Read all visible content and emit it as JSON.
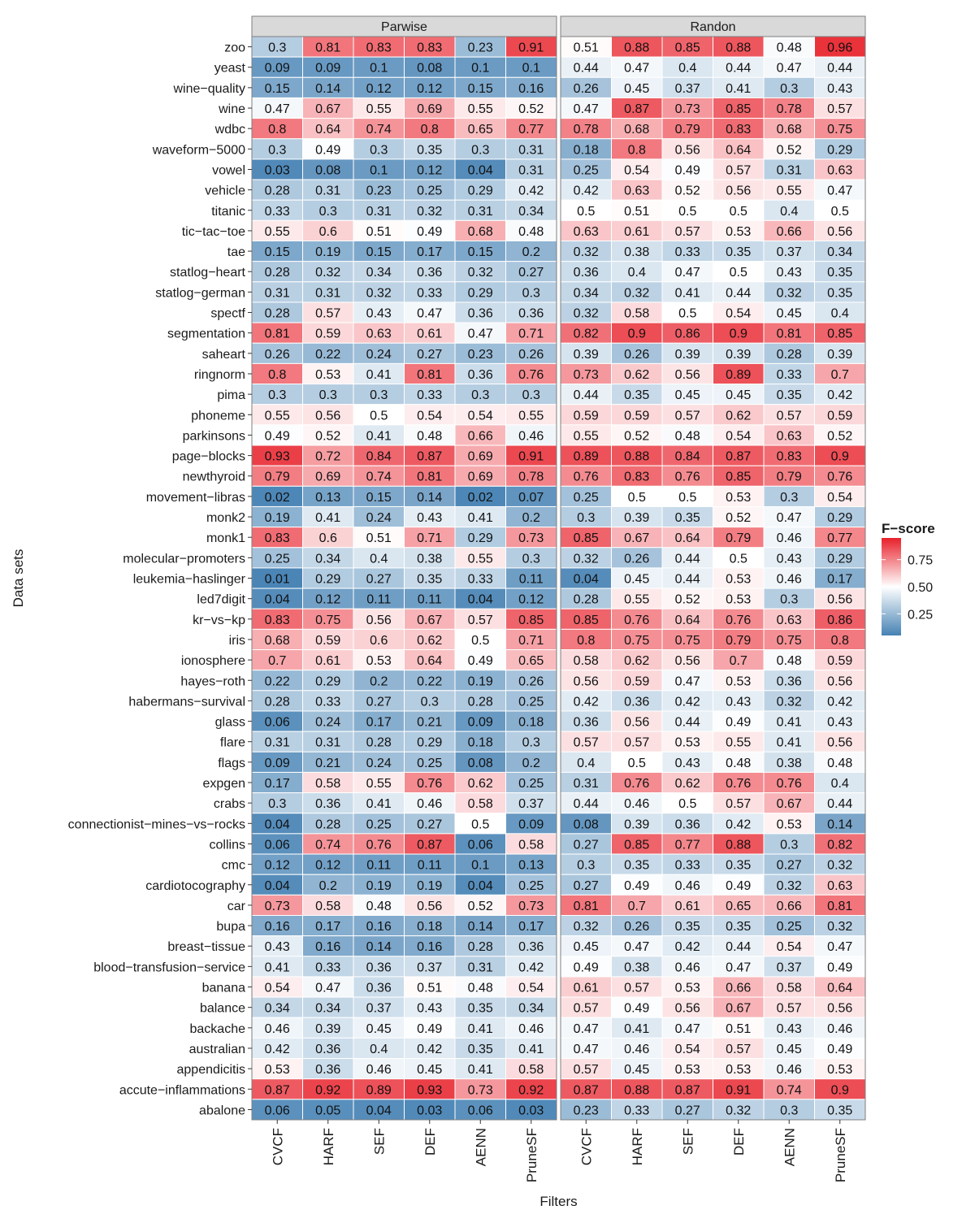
{
  "chart_data": {
    "type": "heatmap",
    "title": "",
    "xlabel": "Filters",
    "ylabel": "Data sets",
    "legend": {
      "title": "F-score",
      "ticks": [
        0.25,
        0.5,
        0.75
      ],
      "tick_labels": [
        "0.25",
        "0.50",
        "0.75"
      ],
      "position": "right",
      "colors": {
        "low": "#4682B4",
        "mid": "#FFFFFF",
        "high": "#E8202A"
      },
      "range": [
        0.0,
        1.0
      ]
    },
    "filters": [
      "CVCF",
      "HARF",
      "SEF",
      "DEF",
      "AENN",
      "PruneSF"
    ],
    "datasets": [
      "zoo",
      "yeast",
      "wine-quality",
      "wine",
      "wdbc",
      "waveform-5000",
      "vowel",
      "vehicle",
      "titanic",
      "tic-tac-toe",
      "tae",
      "statlog-heart",
      "statlog-german",
      "spectf",
      "segmentation",
      "saheart",
      "ringnorm",
      "pima",
      "phoneme",
      "parkinsons",
      "page-blocks",
      "newthyroid",
      "movement-libras",
      "monk2",
      "monk1",
      "molecular-promoters",
      "leukemia-haslinger",
      "led7digit",
      "kr-vs-kp",
      "iris",
      "ionosphere",
      "hayes-roth",
      "habermans-survival",
      "glass",
      "flare",
      "flags",
      "expgen",
      "crabs",
      "connectionist-mines-vs-rocks",
      "collins",
      "cmc",
      "cardiotocography",
      "car",
      "bupa",
      "breast-tissue",
      "blood-transfusion-service",
      "banana",
      "balance",
      "backache",
      "australian",
      "appendicitis",
      "accute-inflammations",
      "abalone"
    ],
    "panels": [
      {
        "name": "Parwise",
        "values": [
          [
            0.3,
            0.81,
            0.83,
            0.83,
            0.23,
            0.91
          ],
          [
            0.09,
            0.09,
            0.1,
            0.08,
            0.1,
            0.1
          ],
          [
            0.15,
            0.14,
            0.12,
            0.12,
            0.15,
            0.16
          ],
          [
            0.47,
            0.67,
            0.55,
            0.69,
            0.55,
            0.52
          ],
          [
            0.8,
            0.64,
            0.74,
            0.8,
            0.65,
            0.77
          ],
          [
            0.3,
            0.49,
            0.3,
            0.35,
            0.3,
            0.31
          ],
          [
            0.03,
            0.08,
            0.1,
            0.12,
            0.04,
            0.31
          ],
          [
            0.28,
            0.31,
            0.23,
            0.25,
            0.29,
            0.42
          ],
          [
            0.33,
            0.3,
            0.31,
            0.32,
            0.31,
            0.34
          ],
          [
            0.55,
            0.6,
            0.51,
            0.49,
            0.68,
            0.48
          ],
          [
            0.15,
            0.19,
            0.15,
            0.17,
            0.15,
            0.2
          ],
          [
            0.28,
            0.32,
            0.34,
            0.36,
            0.32,
            0.27
          ],
          [
            0.31,
            0.31,
            0.32,
            0.33,
            0.29,
            0.3
          ],
          [
            0.28,
            0.57,
            0.43,
            0.47,
            0.36,
            0.36
          ],
          [
            0.81,
            0.59,
            0.63,
            0.61,
            0.47,
            0.71
          ],
          [
            0.26,
            0.22,
            0.24,
            0.27,
            0.23,
            0.26
          ],
          [
            0.8,
            0.53,
            0.41,
            0.81,
            0.36,
            0.76
          ],
          [
            0.3,
            0.3,
            0.3,
            0.33,
            0.3,
            0.3
          ],
          [
            0.55,
            0.56,
            0.5,
            0.54,
            0.54,
            0.55
          ],
          [
            0.49,
            0.52,
            0.41,
            0.48,
            0.66,
            0.46
          ],
          [
            0.93,
            0.72,
            0.84,
            0.87,
            0.69,
            0.91
          ],
          [
            0.79,
            0.69,
            0.74,
            0.81,
            0.69,
            0.78
          ],
          [
            0.02,
            0.13,
            0.15,
            0.14,
            0.02,
            0.07
          ],
          [
            0.19,
            0.41,
            0.24,
            0.43,
            0.41,
            0.2
          ],
          [
            0.83,
            0.6,
            0.51,
            0.71,
            0.29,
            0.73
          ],
          [
            0.25,
            0.34,
            0.4,
            0.38,
            0.55,
            0.3
          ],
          [
            0.01,
            0.29,
            0.27,
            0.35,
            0.33,
            0.11
          ],
          [
            0.04,
            0.12,
            0.11,
            0.11,
            0.04,
            0.12
          ],
          [
            0.83,
            0.75,
            0.56,
            0.67,
            0.57,
            0.85
          ],
          [
            0.68,
            0.59,
            0.6,
            0.62,
            0.5,
            0.71
          ],
          [
            0.7,
            0.61,
            0.53,
            0.64,
            0.49,
            0.65
          ],
          [
            0.22,
            0.29,
            0.2,
            0.22,
            0.19,
            0.26
          ],
          [
            0.28,
            0.33,
            0.27,
            0.3,
            0.28,
            0.25
          ],
          [
            0.06,
            0.24,
            0.17,
            0.21,
            0.09,
            0.18
          ],
          [
            0.31,
            0.31,
            0.28,
            0.29,
            0.18,
            0.3
          ],
          [
            0.09,
            0.21,
            0.24,
            0.25,
            0.08,
            0.2
          ],
          [
            0.17,
            0.58,
            0.55,
            0.76,
            0.62,
            0.25
          ],
          [
            0.3,
            0.36,
            0.41,
            0.46,
            0.58,
            0.37
          ],
          [
            0.04,
            0.28,
            0.25,
            0.27,
            0.5,
            0.09
          ],
          [
            0.06,
            0.74,
            0.76,
            0.87,
            0.06,
            0.58
          ],
          [
            0.12,
            0.12,
            0.11,
            0.11,
            0.1,
            0.13
          ],
          [
            0.04,
            0.2,
            0.19,
            0.19,
            0.04,
            0.25
          ],
          [
            0.73,
            0.58,
            0.48,
            0.56,
            0.52,
            0.73
          ],
          [
            0.16,
            0.17,
            0.16,
            0.18,
            0.14,
            0.17
          ],
          [
            0.43,
            0.16,
            0.14,
            0.16,
            0.28,
            0.36
          ],
          [
            0.41,
            0.33,
            0.36,
            0.37,
            0.31,
            0.42
          ],
          [
            0.54,
            0.47,
            0.36,
            0.51,
            0.48,
            0.54
          ],
          [
            0.34,
            0.34,
            0.37,
            0.43,
            0.35,
            0.34
          ],
          [
            0.46,
            0.39,
            0.45,
            0.49,
            0.41,
            0.46
          ],
          [
            0.42,
            0.36,
            0.4,
            0.42,
            0.35,
            0.41
          ],
          [
            0.53,
            0.36,
            0.46,
            0.45,
            0.41,
            0.58
          ],
          [
            0.87,
            0.92,
            0.89,
            0.93,
            0.73,
            0.92
          ],
          [
            0.06,
            0.05,
            0.04,
            0.03,
            0.06,
            0.03
          ]
        ]
      },
      {
        "name": "Randon",
        "values": [
          [
            0.51,
            0.88,
            0.85,
            0.88,
            0.48,
            0.96
          ],
          [
            0.44,
            0.47,
            0.4,
            0.44,
            0.47,
            0.44
          ],
          [
            0.26,
            0.45,
            0.37,
            0.41,
            0.3,
            0.43
          ],
          [
            0.47,
            0.87,
            0.73,
            0.85,
            0.78,
            0.57
          ],
          [
            0.78,
            0.68,
            0.79,
            0.83,
            0.68,
            0.75
          ],
          [
            0.18,
            0.8,
            0.56,
            0.64,
            0.52,
            0.29
          ],
          [
            0.25,
            0.54,
            0.49,
            0.57,
            0.31,
            0.63
          ],
          [
            0.42,
            0.63,
            0.52,
            0.56,
            0.55,
            0.47
          ],
          [
            0.5,
            0.51,
            0.5,
            0.5,
            0.4,
            0.5
          ],
          [
            0.63,
            0.61,
            0.57,
            0.53,
            0.66,
            0.56
          ],
          [
            0.32,
            0.38,
            0.33,
            0.35,
            0.37,
            0.34
          ],
          [
            0.36,
            0.4,
            0.47,
            0.5,
            0.43,
            0.35
          ],
          [
            0.34,
            0.32,
            0.41,
            0.44,
            0.32,
            0.35
          ],
          [
            0.32,
            0.58,
            0.5,
            0.54,
            0.45,
            0.4
          ],
          [
            0.82,
            0.9,
            0.86,
            0.9,
            0.81,
            0.85
          ],
          [
            0.39,
            0.26,
            0.39,
            0.39,
            0.28,
            0.39
          ],
          [
            0.73,
            0.62,
            0.56,
            0.89,
            0.33,
            0.7
          ],
          [
            0.44,
            0.35,
            0.45,
            0.45,
            0.35,
            0.42
          ],
          [
            0.59,
            0.59,
            0.57,
            0.62,
            0.57,
            0.59
          ],
          [
            0.55,
            0.52,
            0.48,
            0.54,
            0.63,
            0.52
          ],
          [
            0.89,
            0.88,
            0.84,
            0.87,
            0.83,
            0.9
          ],
          [
            0.76,
            0.83,
            0.76,
            0.85,
            0.79,
            0.76
          ],
          [
            0.25,
            0.5,
            0.5,
            0.53,
            0.3,
            0.54
          ],
          [
            0.3,
            0.39,
            0.35,
            0.52,
            0.47,
            0.29
          ],
          [
            0.85,
            0.67,
            0.64,
            0.79,
            0.46,
            0.77
          ],
          [
            0.32,
            0.26,
            0.44,
            0.5,
            0.43,
            0.29
          ],
          [
            0.04,
            0.45,
            0.44,
            0.53,
            0.46,
            0.17
          ],
          [
            0.28,
            0.55,
            0.52,
            0.53,
            0.3,
            0.56
          ],
          [
            0.85,
            0.76,
            0.64,
            0.76,
            0.63,
            0.86
          ],
          [
            0.8,
            0.75,
            0.75,
            0.79,
            0.75,
            0.8
          ],
          [
            0.58,
            0.62,
            0.56,
            0.7,
            0.48,
            0.59
          ],
          [
            0.56,
            0.59,
            0.47,
            0.53,
            0.36,
            0.56
          ],
          [
            0.42,
            0.36,
            0.42,
            0.43,
            0.32,
            0.42
          ],
          [
            0.36,
            0.56,
            0.44,
            0.49,
            0.41,
            0.43
          ],
          [
            0.57,
            0.57,
            0.53,
            0.55,
            0.41,
            0.56
          ],
          [
            0.4,
            0.5,
            0.43,
            0.48,
            0.38,
            0.48
          ],
          [
            0.31,
            0.76,
            0.62,
            0.76,
            0.76,
            0.4
          ],
          [
            0.44,
            0.46,
            0.5,
            0.57,
            0.67,
            0.44
          ],
          [
            0.08,
            0.39,
            0.36,
            0.42,
            0.53,
            0.14
          ],
          [
            0.27,
            0.85,
            0.77,
            0.88,
            0.3,
            0.82
          ],
          [
            0.3,
            0.35,
            0.33,
            0.35,
            0.27,
            0.32
          ],
          [
            0.27,
            0.49,
            0.46,
            0.49,
            0.32,
            0.63
          ],
          [
            0.81,
            0.7,
            0.61,
            0.65,
            0.66,
            0.81
          ],
          [
            0.32,
            0.26,
            0.35,
            0.35,
            0.25,
            0.32
          ],
          [
            0.45,
            0.47,
            0.42,
            0.44,
            0.54,
            0.47
          ],
          [
            0.49,
            0.38,
            0.46,
            0.47,
            0.37,
            0.49
          ],
          [
            0.61,
            0.57,
            0.53,
            0.66,
            0.58,
            0.64
          ],
          [
            0.57,
            0.49,
            0.56,
            0.67,
            0.57,
            0.56
          ],
          [
            0.47,
            0.41,
            0.47,
            0.51,
            0.43,
            0.46
          ],
          [
            0.47,
            0.46,
            0.54,
            0.57,
            0.45,
            0.49
          ],
          [
            0.57,
            0.45,
            0.53,
            0.53,
            0.46,
            0.53
          ],
          [
            0.87,
            0.88,
            0.87,
            0.91,
            0.74,
            0.9
          ],
          [
            0.23,
            0.33,
            0.27,
            0.32,
            0.3,
            0.35
          ]
        ]
      }
    ]
  }
}
